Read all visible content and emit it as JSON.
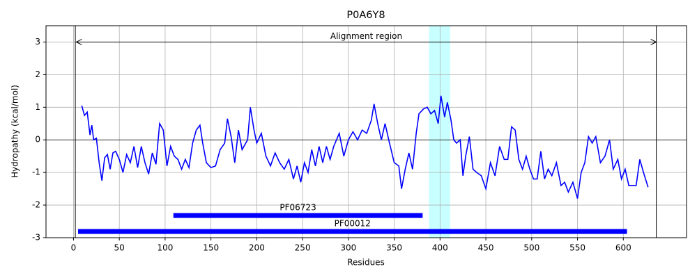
{
  "chart_data": {
    "type": "line",
    "title": "P0A6Y8",
    "x_label": "Residues",
    "y_label": "Hydropathy (kcal/mol)",
    "xlim": [
      -30,
      669
    ],
    "ylim": [
      -3,
      3.5
    ],
    "xticks": [
      0,
      50,
      100,
      150,
      200,
      250,
      300,
      350,
      400,
      450,
      500,
      550,
      600
    ],
    "yticks": [
      -3,
      -2,
      -1,
      0,
      1,
      2,
      3
    ],
    "grid": true,
    "hline": 0,
    "vlines": [
      2,
      636
    ],
    "highlight": {
      "start": 388,
      "end": 411,
      "color": "#c8ffff"
    },
    "annotation": {
      "text": "Alignment region",
      "start": 3,
      "end": 636,
      "y": 3
    },
    "domains": [
      {
        "name": "PF06723",
        "start": 109,
        "end": 381,
        "y": -2.32,
        "color": "#0000ff"
      },
      {
        "name": "PF00012",
        "start": 5,
        "end": 604,
        "y": -2.81,
        "color": "#0000ff"
      }
    ],
    "x": [
      9,
      12,
      15,
      18,
      20,
      22,
      25,
      28,
      31,
      34,
      37,
      40,
      43,
      46,
      50,
      54,
      58,
      62,
      66,
      70,
      74,
      78,
      82,
      86,
      90,
      94,
      98,
      102,
      106,
      110,
      114,
      118,
      122,
      126,
      130,
      134,
      138,
      141,
      145,
      150,
      155,
      160,
      165,
      168,
      172,
      176,
      180,
      184,
      190,
      193,
      197,
      200,
      205,
      210,
      215,
      220,
      225,
      230,
      235,
      240,
      244,
      248,
      252,
      256,
      260,
      264,
      268,
      272,
      276,
      280,
      284,
      290,
      295,
      300,
      305,
      310,
      315,
      320,
      325,
      328,
      332,
      336,
      340,
      344,
      350,
      355,
      358,
      362,
      366,
      370,
      374,
      377,
      382,
      386,
      390,
      394,
      398,
      401,
      405,
      408,
      412,
      415,
      418,
      422,
      425,
      428,
      432,
      436,
      440,
      445,
      450,
      455,
      460,
      465,
      470,
      474,
      478,
      482,
      486,
      490,
      494,
      498,
      502,
      506,
      510,
      514,
      518,
      522,
      527,
      532,
      536,
      540,
      545,
      550,
      554,
      558,
      562,
      566,
      570,
      575,
      580,
      585,
      589,
      594,
      598,
      602,
      606,
      614,
      618,
      622,
      627
    ],
    "series": [
      {
        "name": "Hydropathy",
        "color": "#0000ff",
        "values": [
          1.05,
          0.75,
          0.85,
          0.15,
          0.45,
          0.0,
          0.05,
          -0.7,
          -1.25,
          -0.55,
          -0.45,
          -0.9,
          -0.4,
          -0.35,
          -0.6,
          -1.0,
          -0.45,
          -0.7,
          -0.2,
          -0.85,
          -0.2,
          -0.7,
          -1.05,
          -0.4,
          -0.75,
          0.5,
          0.3,
          -0.8,
          -0.2,
          -0.5,
          -0.6,
          -0.9,
          -0.6,
          -0.85,
          -0.1,
          0.3,
          0.45,
          -0.1,
          -0.7,
          -0.85,
          -0.8,
          -0.3,
          -0.1,
          0.65,
          0.1,
          -0.7,
          0.3,
          -0.3,
          0.0,
          1.0,
          0.3,
          -0.1,
          0.2,
          -0.5,
          -0.8,
          -0.4,
          -0.7,
          -0.9,
          -0.6,
          -1.2,
          -0.8,
          -1.3,
          -0.7,
          -1.0,
          -0.3,
          -0.8,
          -0.2,
          -0.7,
          -0.2,
          -0.6,
          -0.2,
          0.2,
          -0.5,
          0.0,
          0.25,
          0.0,
          0.3,
          0.2,
          0.6,
          1.1,
          0.5,
          0.0,
          0.5,
          0.0,
          -0.7,
          -0.8,
          -1.5,
          -0.9,
          -0.4,
          -0.9,
          0.2,
          0.8,
          0.95,
          1.0,
          0.8,
          0.9,
          0.5,
          1.35,
          0.7,
          1.15,
          0.6,
          0.0,
          -0.1,
          0.0,
          -1.1,
          -0.5,
          0.1,
          -0.9,
          -1.0,
          -1.1,
          -1.5,
          -0.7,
          -1.1,
          -0.2,
          -0.6,
          -0.6,
          0.4,
          0.3,
          -0.6,
          -0.9,
          -0.5,
          -0.9,
          -1.2,
          -1.2,
          -0.35,
          -1.2,
          -0.9,
          -1.1,
          -0.7,
          -1.4,
          -1.3,
          -1.6,
          -1.3,
          -1.8,
          -1.0,
          -0.7,
          0.1,
          -0.1,
          0.1,
          -0.7,
          -0.5,
          0.0,
          -0.9,
          -0.6,
          -1.2,
          -0.9,
          -1.4,
          -1.4,
          -0.6,
          -1.0,
          -1.45
        ]
      }
    ]
  }
}
